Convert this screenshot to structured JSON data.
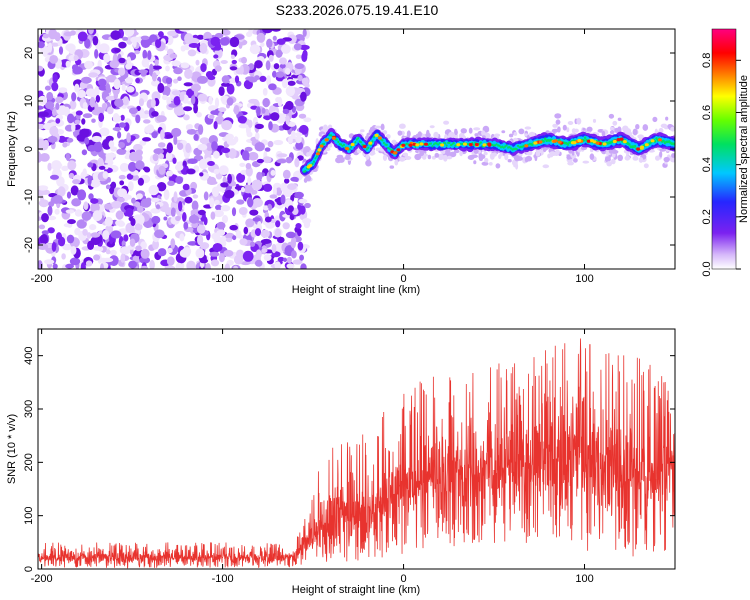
{
  "title": "S233.2026.075.19.41.E10",
  "colors": {
    "noise_purple": "#7b22f0",
    "signal_red": "#e8332e",
    "axis": "#000000"
  },
  "chart_data": [
    {
      "type": "heatmap",
      "xlabel": "Height of straight line (km)",
      "ylabel": "Frequency (Hz)",
      "xlim": [
        -202,
        150
      ],
      "ylim": [
        -25,
        25
      ],
      "x_ticks": [
        -200,
        -100,
        0,
        100
      ],
      "y_ticks": [
        -20,
        -10,
        0,
        10,
        20
      ],
      "x_tick_labels": [
        "-200",
        "-100",
        "0",
        "100"
      ],
      "y_tick_labels": [
        "-20",
        "-10",
        "0",
        "10",
        "20"
      ],
      "noise_region_x": [
        -202,
        -53
      ],
      "signal_track": [
        {
          "x": -55,
          "y": -4.5
        },
        {
          "x": -50,
          "y": -3
        },
        {
          "x": -45,
          "y": 1
        },
        {
          "x": -40,
          "y": 3
        },
        {
          "x": -35,
          "y": 1
        },
        {
          "x": -30,
          "y": 0
        },
        {
          "x": -25,
          "y": 2
        },
        {
          "x": -20,
          "y": 0
        },
        {
          "x": -15,
          "y": 3
        },
        {
          "x": -10,
          "y": 1
        },
        {
          "x": -5,
          "y": -1
        },
        {
          "x": 0,
          "y": 1
        },
        {
          "x": 10,
          "y": 1
        },
        {
          "x": 20,
          "y": 1
        },
        {
          "x": 30,
          "y": 1
        },
        {
          "x": 40,
          "y": 1
        },
        {
          "x": 50,
          "y": 1
        },
        {
          "x": 60,
          "y": 0
        },
        {
          "x": 70,
          "y": 1
        },
        {
          "x": 80,
          "y": 2
        },
        {
          "x": 90,
          "y": 1
        },
        {
          "x": 100,
          "y": 2
        },
        {
          "x": 110,
          "y": 1
        },
        {
          "x": 120,
          "y": 2
        },
        {
          "x": 130,
          "y": 0
        },
        {
          "x": 140,
          "y": 2
        },
        {
          "x": 150,
          "y": 1
        }
      ],
      "colorbar": {
        "label": "Normalized spectral amplitude",
        "range": [
          0,
          0.92
        ],
        "ticks": [
          0,
          0.2,
          0.4,
          0.6,
          0.8
        ],
        "tick_labels": [
          "0.0",
          "0.2",
          "0.4",
          "0.6",
          "0.8"
        ],
        "colormap": "rainbow (white-purple-blue-cyan-green-yellow-red-magenta)"
      }
    },
    {
      "type": "line",
      "xlabel": "Height of straight line (km)",
      "ylabel": "SNR (10 * v/v)",
      "xlim": [
        -202,
        150
      ],
      "ylim": [
        0,
        450
      ],
      "x_ticks": [
        -200,
        -100,
        0,
        100
      ],
      "y_ticks": [
        0,
        100,
        200,
        300,
        400
      ],
      "x_tick_labels": [
        "-200",
        "-100",
        "0",
        "100"
      ],
      "y_tick_labels": [
        "0",
        "100",
        "200",
        "300",
        "400"
      ],
      "series": [
        {
          "color": "#e8332e",
          "envelope": [
            {
              "x": -202,
              "low": 2,
              "mid": 22,
              "high": 50
            },
            {
              "x": -60,
              "low": 2,
              "mid": 22,
              "high": 50
            },
            {
              "x": -45,
              "low": 10,
              "mid": 90,
              "high": 230
            },
            {
              "x": -20,
              "low": 15,
              "mid": 110,
              "high": 260
            },
            {
              "x": 0,
              "low": 25,
              "mid": 160,
              "high": 340
            },
            {
              "x": 20,
              "low": 40,
              "mid": 190,
              "high": 380
            },
            {
              "x": 60,
              "low": 50,
              "mid": 200,
              "high": 390
            },
            {
              "x": 90,
              "low": 40,
              "mid": 220,
              "high": 450
            },
            {
              "x": 110,
              "low": 30,
              "mid": 200,
              "high": 410
            },
            {
              "x": 130,
              "low": 20,
              "mid": 180,
              "high": 420
            },
            {
              "x": 150,
              "low": 10,
              "mid": 170,
              "high": 330
            }
          ]
        }
      ]
    }
  ]
}
